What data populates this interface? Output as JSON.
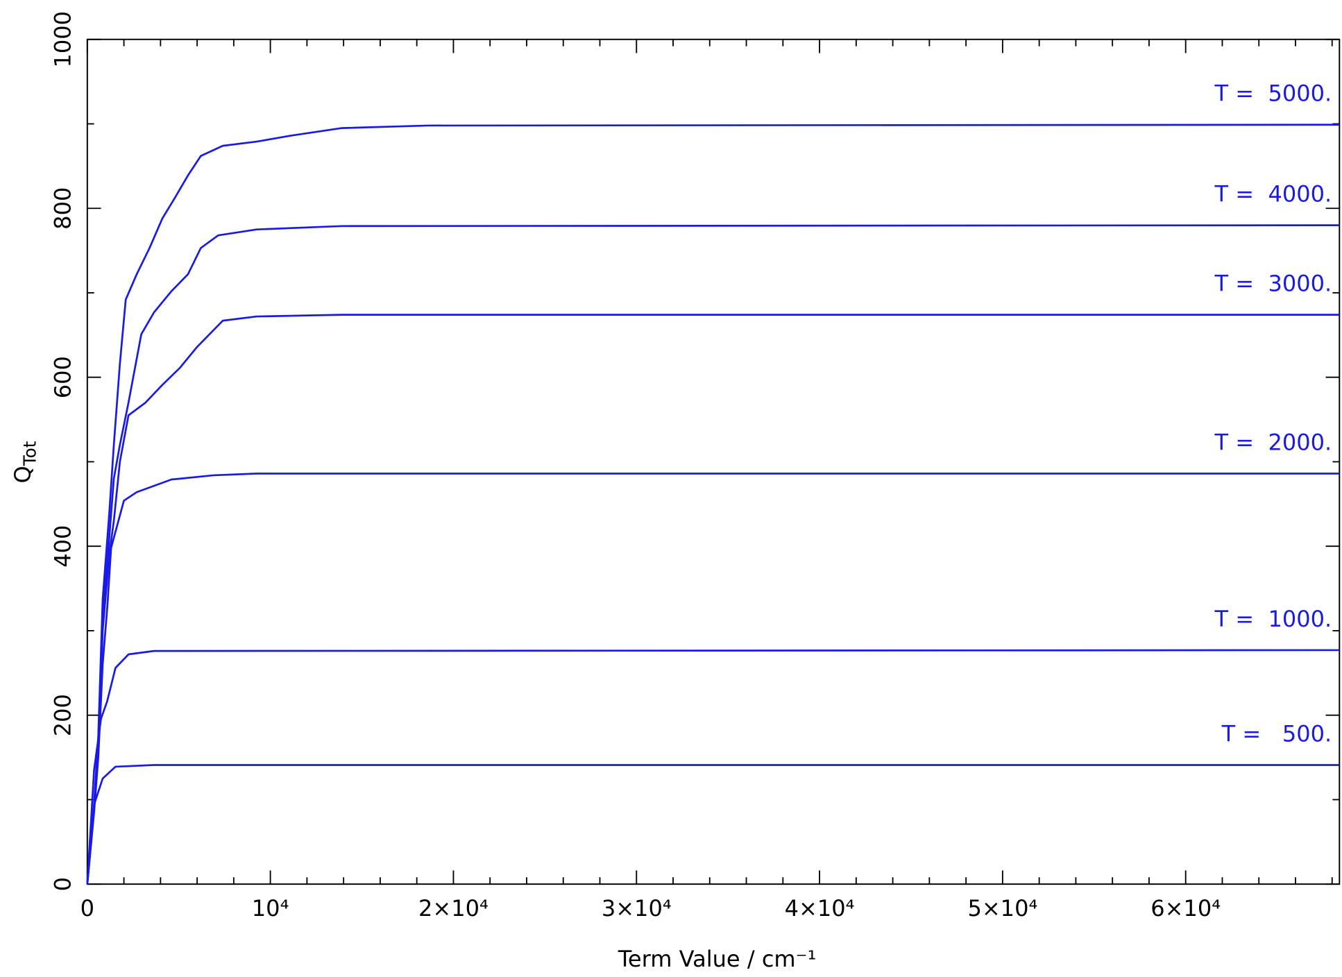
{
  "chart_data": {
    "type": "line",
    "xlabel": "Term Value / cm⁻¹",
    "ylabel": {
      "main": "Q",
      "sub": "Tot"
    },
    "xlim": [
      0,
      68400
    ],
    "ylim": [
      0,
      1000
    ],
    "xticks": [
      0,
      {
        "value": 10000,
        "label": "10⁴"
      },
      {
        "value": 20000,
        "label": "2×10⁴"
      },
      {
        "value": 30000,
        "label": "3×10⁴"
      },
      {
        "value": 40000,
        "label": "4×10⁴"
      },
      {
        "value": 50000,
        "label": "5×10⁴"
      },
      {
        "value": 60000,
        "label": "6×10⁴"
      }
    ],
    "xminorticks": [
      2000,
      4000,
      6000,
      8000,
      12000,
      14000,
      16000,
      18000,
      22000,
      24000,
      26000,
      28000,
      32000,
      34000,
      36000,
      38000,
      42000,
      44000,
      46000,
      48000,
      52000,
      54000,
      56000,
      58000,
      62000,
      64000,
      66000,
      68000
    ],
    "yticks": [
      0,
      200,
      400,
      600,
      800,
      1000
    ],
    "yminorticks": [
      100,
      300,
      500,
      700,
      900
    ],
    "series": [
      {
        "name": "T =  5000.",
        "color": "#1a1ae6",
        "x": [
          0,
          370,
          600,
          840,
          1200,
          1450,
          1780,
          2100,
          2700,
          3400,
          4100,
          4800,
          5500,
          6200,
          7400,
          9250,
          11100,
          13900,
          18600,
          68400
        ],
        "values": [
          0,
          94,
          175,
          337,
          439,
          520,
          616,
          692,
          722,
          753,
          788,
          813,
          839,
          862,
          874,
          879,
          886,
          895,
          898,
          899
        ]
      },
      {
        "name": "T =  4000.",
        "color": "#1a1ae6",
        "x": [
          0,
          370,
          600,
          840,
          1200,
          1450,
          1780,
          2250,
          2950,
          3650,
          4600,
          5500,
          6200,
          7150,
          9250,
          13900,
          68400
        ],
        "values": [
          0,
          90,
          170,
          320,
          410,
          480,
          520,
          570,
          651,
          677,
          702,
          722,
          753,
          768,
          775,
          779,
          780
        ]
      },
      {
        "name": "T =  3000.",
        "color": "#1a1ae6",
        "x": [
          0,
          370,
          600,
          840,
          1200,
          1450,
          1780,
          2250,
          3180,
          4100,
          5050,
          6000,
          7400,
          9250,
          13900,
          68400
        ],
        "values": [
          0,
          88,
          160,
          300,
          390,
          430,
          500,
          555,
          570,
          591,
          611,
          636,
          667,
          672,
          674,
          674
        ]
      },
      {
        "name": "T =  2000.",
        "color": "#1a1ae6",
        "x": [
          0,
          370,
          600,
          840,
          1100,
          1300,
          2000,
          2700,
          4600,
          6900,
          9250,
          68400
        ],
        "values": [
          0,
          85,
          150,
          260,
          330,
          398,
          454,
          464,
          479,
          484,
          486,
          486
        ]
      },
      {
        "name": "T =  1000.",
        "color": "#1a1ae6",
        "x": [
          0,
          370,
          750,
          1080,
          1540,
          2250,
          3650,
          68400
        ],
        "values": [
          0,
          135,
          196,
          216,
          256,
          272,
          276,
          277
        ]
      },
      {
        "name": "T =   500.",
        "color": "#1a1ae6",
        "x": [
          0,
          140,
          370,
          840,
          1540,
          3650,
          68400
        ],
        "values": [
          0,
          33,
          94,
          125,
          139,
          141,
          141
        ]
      }
    ]
  }
}
